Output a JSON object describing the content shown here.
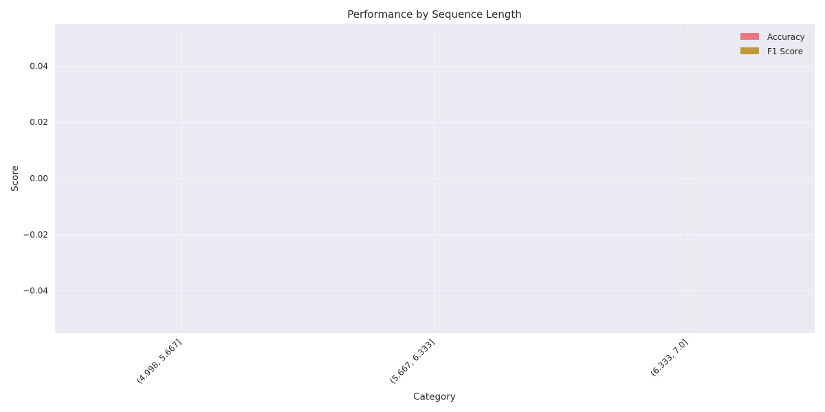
{
  "chart_data": {
    "type": "bar",
    "title": "Performance by Sequence Length",
    "xlabel": "Category",
    "ylabel": "Score",
    "categories": [
      "(4.998, 5.667]",
      "(5.667, 6.333]",
      "(6.333, 7.0]"
    ],
    "series": [
      {
        "name": "Accuracy",
        "values": [
          0,
          0,
          0
        ],
        "color": "#f07584"
      },
      {
        "name": "F1 Score",
        "values": [
          0,
          0,
          0
        ],
        "color": "#c0983c"
      }
    ],
    "ylim": [
      -0.055,
      0.055
    ],
    "yticks": [
      -0.04,
      -0.02,
      0.0,
      0.02,
      0.04
    ],
    "ytick_labels": [
      "−0.04",
      "−0.02",
      "0.00",
      "0.02",
      "0.04"
    ],
    "grid": true,
    "legend_position": "top-right",
    "background": "#eaeaf2"
  }
}
